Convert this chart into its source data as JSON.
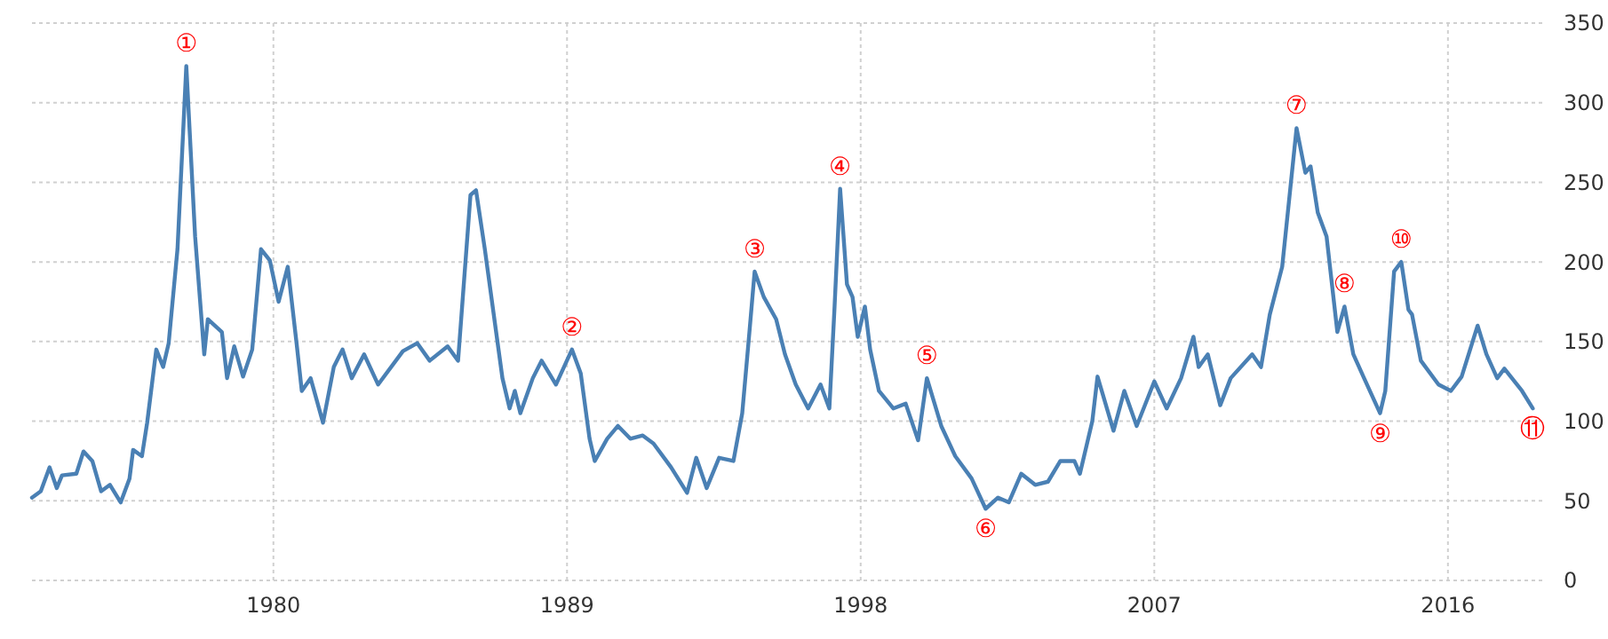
{
  "chart_data": {
    "type": "line",
    "xlim": [
      1972.6,
      2019.0
    ],
    "xticks": [
      1980,
      1989,
      1998,
      2007,
      2016
    ],
    "ylim": [
      0,
      350
    ],
    "yticks": [
      0,
      50,
      100,
      150,
      200,
      250,
      300,
      350
    ],
    "grid": true,
    "marker": "none",
    "line_style": "solid",
    "series": [
      {
        "color": "#4a80b4",
        "x": [
          1972.6,
          1972.87,
          1973.14,
          1973.36,
          1973.52,
          1973.96,
          1974.18,
          1974.45,
          1974.72,
          1974.99,
          1975.32,
          1975.59,
          1975.7,
          1975.97,
          1976.13,
          1976.41,
          1976.62,
          1976.79,
          1977.06,
          1977.33,
          1977.6,
          1977.88,
          1977.99,
          1978.42,
          1978.58,
          1978.8,
          1979.07,
          1979.35,
          1979.62,
          1979.89,
          1980.16,
          1980.44,
          1980.71,
          1980.87,
          1981.14,
          1981.52,
          1981.85,
          1982.12,
          1982.4,
          1982.78,
          1983.21,
          1983.97,
          1984.41,
          1984.79,
          1985.34,
          1985.66,
          1986.04,
          1986.21,
          1986.48,
          1987.02,
          1987.24,
          1987.4,
          1987.57,
          1987.95,
          1988.22,
          1988.66,
          1989.15,
          1989.42,
          1989.69,
          1989.85,
          1990.23,
          1990.56,
          1990.94,
          1991.32,
          1991.65,
          1992.19,
          1992.68,
          1992.96,
          1993.28,
          1993.66,
          1994.1,
          1994.37,
          1994.59,
          1994.75,
          1995.03,
          1995.41,
          1995.68,
          1996.01,
          1996.39,
          1996.77,
          1997.04,
          1997.2,
          1997.37,
          1997.58,
          1997.75,
          1997.91,
          1998.13,
          1998.29,
          1998.56,
          1999.0,
          1999.38,
          1999.76,
          2000.03,
          2000.47,
          2000.9,
          2001.4,
          2001.83,
          2002.21,
          2002.54,
          2002.92,
          2003.35,
          2003.74,
          2004.12,
          2004.55,
          2004.72,
          2005.1,
          2005.26,
          2005.75,
          2006.08,
          2006.46,
          2007.0,
          2007.38,
          2007.82,
          2008.2,
          2008.36,
          2008.64,
          2009.02,
          2009.34,
          2010.0,
          2010.27,
          2010.54,
          2010.92,
          2011.36,
          2011.63,
          2011.79,
          2012.01,
          2012.28,
          2012.61,
          2012.83,
          2013.1,
          2013.43,
          2013.92,
          2014.08,
          2014.35,
          2014.57,
          2014.79,
          2014.9,
          2015.17,
          2015.71,
          2016.09,
          2016.42,
          2016.91,
          2017.18,
          2017.51,
          2017.73,
          2018.27,
          2018.6
        ],
        "values": [
          52,
          56,
          71,
          58,
          66,
          67,
          81,
          75,
          56,
          60,
          49,
          64,
          82,
          78,
          99,
          145,
          134,
          149,
          208,
          323,
          216,
          142,
          164,
          156,
          127,
          147,
          128,
          145,
          208,
          201,
          175,
          197,
          149,
          119,
          127,
          99,
          134,
          145,
          127,
          142,
          123,
          144,
          149,
          138,
          147,
          138,
          242,
          245,
          208,
          127,
          108,
          119,
          105,
          127,
          138,
          123,
          145,
          130,
          89,
          75,
          89,
          97,
          89,
          91,
          86,
          71,
          55,
          77,
          58,
          77,
          75,
          105,
          156,
          194,
          178,
          164,
          142,
          123,
          108,
          123,
          108,
          172,
          246,
          186,
          178,
          153,
          172,
          145,
          119,
          108,
          111,
          88,
          127,
          97,
          78,
          64,
          45,
          52,
          49,
          67,
          60,
          62,
          75,
          75,
          67,
          100,
          128,
          94,
          119,
          97,
          125,
          108,
          127,
          153,
          134,
          142,
          110,
          127,
          142,
          134,
          167,
          197,
          284,
          256,
          260,
          231,
          216,
          156,
          172,
          142,
          127,
          105,
          119,
          194,
          200,
          170,
          167,
          138,
          123,
          119,
          128,
          160,
          142,
          127,
          133,
          119,
          108
        ]
      }
    ],
    "annotations": [
      {
        "text": "①",
        "x": 1977.33,
        "y": 323
      },
      {
        "text": "②",
        "x": 1989.15,
        "y": 145
      },
      {
        "text": "③",
        "x": 1994.75,
        "y": 194
      },
      {
        "text": "④",
        "x": 1997.37,
        "y": 246
      },
      {
        "text": "⑤",
        "x": 2000.03,
        "y": 127
      },
      {
        "text": "⑥",
        "x": 2001.83,
        "y": 45
      },
      {
        "text": "⑦",
        "x": 2011.36,
        "y": 284
      },
      {
        "text": "⑧",
        "x": 2012.83,
        "y": 172
      },
      {
        "text": "⑨",
        "x": 2013.92,
        "y": 105
      },
      {
        "text": "⑩",
        "x": 2014.57,
        "y": 200
      },
      {
        "text": "⑪",
        "x": 2018.6,
        "y": 108
      }
    ]
  }
}
